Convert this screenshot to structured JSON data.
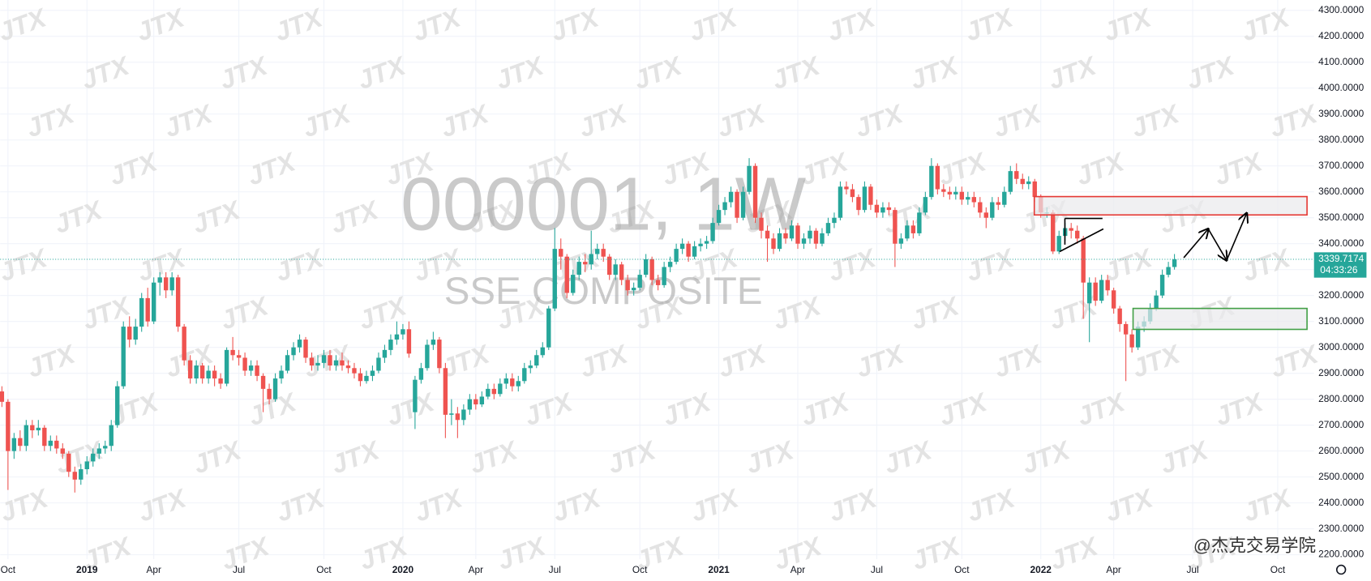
{
  "chart_data": {
    "type": "candlestick",
    "title": "000001, 1W",
    "subtitle": "SSE COMPOSITE",
    "watermark": "JTX",
    "credit": "@杰克交易学院",
    "countdown": "04:33:26",
    "up_color": "#26a69a",
    "down_color": "#ef5350",
    "grid": true,
    "categories": [
      null,
      "Oct",
      null,
      null,
      null,
      null,
      null,
      null,
      null,
      null,
      null,
      null,
      null,
      null,
      "2019",
      null,
      null,
      null,
      null,
      null,
      null,
      null,
      null,
      null,
      null,
      "Apr",
      null,
      null,
      null,
      null,
      null,
      null,
      null,
      null,
      null,
      null,
      null,
      null,
      null,
      "Jul",
      null,
      null,
      null,
      null,
      null,
      null,
      null,
      null,
      null,
      null,
      null,
      null,
      null,
      "Oct",
      null,
      null,
      null,
      null,
      null,
      null,
      null,
      null,
      null,
      null,
      null,
      null,
      "2020",
      null,
      null,
      null,
      null,
      null,
      null,
      null,
      null,
      null,
      null,
      null,
      "Apr",
      null,
      null,
      null,
      null,
      null,
      null,
      null,
      null,
      null,
      null,
      null,
      null,
      "Jul",
      null,
      null,
      null,
      null,
      null,
      null,
      null,
      null,
      null,
      null,
      null,
      null,
      null,
      "Oct",
      null,
      null,
      null,
      null,
      null,
      null,
      null,
      null,
      null,
      null,
      null,
      null,
      "2021",
      null,
      null,
      null,
      null,
      null,
      null,
      null,
      null,
      null,
      null,
      null,
      null,
      "Apr",
      null,
      null,
      null,
      null,
      null,
      null,
      null,
      null,
      null,
      null,
      null,
      null,
      "Jul",
      null,
      null,
      null,
      null,
      null,
      null,
      null,
      null,
      null,
      null,
      null,
      null,
      null,
      "Oct",
      null,
      null,
      null,
      null,
      null,
      null,
      null,
      null,
      null,
      null,
      null,
      null,
      "2022",
      null,
      null,
      null,
      null,
      null,
      null,
      null,
      null,
      null,
      null,
      null,
      "Apr",
      null,
      null,
      null,
      null,
      null,
      null,
      null,
      null,
      null,
      null,
      null,
      null,
      "Jul",
      null,
      null,
      null,
      null,
      null,
      null,
      null,
      null,
      null,
      null,
      null,
      null,
      null,
      "Oct",
      null,
      null,
      null,
      null,
      null
    ],
    "open": [
      2830,
      2790,
      2600,
      2650,
      2620,
      2700,
      2680,
      2690,
      2620,
      2640,
      2610,
      2590,
      2520,
      2490,
      2530,
      2560,
      2590,
      2610,
      2620,
      2700,
      2850,
      3080,
      3030,
      3080,
      3190,
      3100,
      3250,
      3270,
      3220,
      3270,
      3080,
      2950,
      2880,
      2930,
      2880,
      2910,
      2880,
      2860,
      2990,
      2970,
      2960,
      2910,
      2930,
      2890,
      2840,
      2800,
      2880,
      2910,
      2970,
      3000,
      3030,
      2960,
      2930,
      2940,
      2970,
      2930,
      2950,
      2930,
      2920,
      2900,
      2870,
      2890,
      2910,
      2960,
      2990,
      3030,
      3050,
      3070,
      2750,
      2875,
      2920,
      3010,
      3030,
      2920,
      2740,
      2745,
      2720,
      2760,
      2800,
      2780,
      2810,
      2840,
      2820,
      2860,
      2880,
      2850,
      2870,
      2920,
      2930,
      2970,
      3000,
      3150,
      3380,
      3350,
      3210,
      3280,
      3330,
      3320,
      3360,
      3380,
      3350,
      3280,
      3320,
      3260,
      3220,
      3230,
      3280,
      3340,
      3260,
      3240,
      3310,
      3330,
      3380,
      3400,
      3350,
      3390,
      3400,
      3410,
      3480,
      3530,
      3560,
      3600,
      3500,
      3600,
      3700,
      3500,
      3450,
      3420,
      3380,
      3440,
      3420,
      3470,
      3400,
      3420,
      3450,
      3400,
      3440,
      3480,
      3500,
      3620,
      3610,
      3580,
      3530,
      3620,
      3550,
      3520,
      3540,
      3530,
      3400,
      3420,
      3470,
      3440,
      3520,
      3580,
      3700,
      3610,
      3600,
      3590,
      3600,
      3570,
      3580,
      3560,
      3520,
      3500,
      3560,
      3550,
      3600,
      3680,
      3650,
      3630,
      3640,
      3580,
      3520,
      3520,
      3370,
      3430,
      3460,
      3450,
      3420,
      3170,
      3250,
      3180,
      3260,
      3220,
      3150,
      3090,
      3050,
      3000,
      3080,
      3100,
      3150,
      3200,
      3280,
      3310,
      null,
      null,
      null,
      null,
      null,
      null,
      null,
      null,
      null,
      null,
      null,
      null,
      null,
      null,
      null,
      null,
      null,
      null,
      null,
      null,
      null,
      null
    ],
    "high": [
      2850,
      2800,
      2670,
      2680,
      2720,
      2720,
      2720,
      2700,
      2660,
      2660,
      2630,
      2600,
      2540,
      2550,
      2580,
      2610,
      2630,
      2640,
      2720,
      2870,
      3100,
      3120,
      3110,
      3210,
      3230,
      3270,
      3290,
      3290,
      3290,
      3280,
      3090,
      2970,
      2950,
      2940,
      2930,
      2930,
      2900,
      3000,
      3040,
      2990,
      2980,
      2950,
      2950,
      2900,
      2860,
      2900,
      2930,
      2990,
      3020,
      3050,
      3040,
      2980,
      2970,
      2990,
      2990,
      2970,
      2980,
      2950,
      2940,
      2920,
      2910,
      2930,
      2980,
      3010,
      3050,
      3100,
      3090,
      3100,
      2890,
      2940,
      3030,
      3060,
      3040,
      2940,
      2800,
      2770,
      2780,
      2820,
      2820,
      2830,
      2860,
      2860,
      2880,
      2900,
      2900,
      2890,
      2940,
      2950,
      2990,
      3020,
      3160,
      3460,
      3420,
      3360,
      3300,
      3350,
      3360,
      3450,
      3400,
      3400,
      3360,
      3340,
      3330,
      3280,
      3250,
      3300,
      3360,
      3350,
      3280,
      3330,
      3350,
      3400,
      3420,
      3410,
      3410,
      3420,
      3430,
      3500,
      3550,
      3580,
      3620,
      3610,
      3620,
      3730,
      3710,
      3520,
      3470,
      3440,
      3460,
      3460,
      3490,
      3480,
      3440,
      3470,
      3460,
      3460,
      3500,
      3520,
      3640,
      3640,
      3630,
      3590,
      3640,
      3630,
      3570,
      3560,
      3560,
      3540,
      3440,
      3490,
      3490,
      3540,
      3600,
      3730,
      3710,
      3630,
      3620,
      3620,
      3620,
      3600,
      3600,
      3580,
      3540,
      3580,
      3580,
      3620,
      3700,
      3710,
      3670,
      3660,
      3650,
      3590,
      3540,
      3530,
      3450,
      3480,
      3480,
      3470,
      3430,
      3270,
      3270,
      3280,
      3280,
      3230,
      3160,
      3100,
      3070,
      3100,
      3120,
      3170,
      3220,
      3300,
      3330,
      3360,
      null,
      null,
      null,
      null,
      null,
      null,
      null,
      null,
      null,
      null,
      null,
      null,
      null,
      null,
      null,
      null,
      null,
      null,
      null,
      null,
      null,
      null
    ],
    "low": [
      2770,
      2450,
      2570,
      2600,
      2600,
      2650,
      2660,
      2600,
      2600,
      2590,
      2570,
      2500,
      2440,
      2470,
      2510,
      2540,
      2570,
      2590,
      2600,
      2690,
      2840,
      3000,
      3010,
      3060,
      3080,
      3090,
      3200,
      3190,
      3200,
      3060,
      2930,
      2860,
      2860,
      2860,
      2860,
      2850,
      2840,
      2850,
      2950,
      2930,
      2890,
      2890,
      2870,
      2750,
      2780,
      2790,
      2860,
      2900,
      2950,
      2980,
      2940,
      2910,
      2910,
      2920,
      2910,
      2910,
      2910,
      2900,
      2880,
      2850,
      2860,
      2870,
      2900,
      2940,
      2970,
      3010,
      3030,
      2960,
      2685,
      2860,
      2910,
      2990,
      2900,
      2650,
      2700,
      2650,
      2700,
      2740,
      2760,
      2770,
      2800,
      2800,
      2810,
      2840,
      2830,
      2830,
      2860,
      2900,
      2920,
      2960,
      2990,
      3140,
      3300,
      3190,
      3200,
      3260,
      3290,
      3300,
      3340,
      3330,
      3260,
      3260,
      3240,
      3200,
      3200,
      3220,
      3270,
      3240,
      3220,
      3230,
      3290,
      3320,
      3360,
      3330,
      3340,
      3370,
      3380,
      3400,
      3470,
      3510,
      3540,
      3480,
      3490,
      3590,
      3480,
      3420,
      3330,
      3360,
      3370,
      3400,
      3410,
      3380,
      3380,
      3400,
      3380,
      3390,
      3430,
      3460,
      3490,
      3590,
      3560,
      3510,
      3520,
      3530,
      3500,
      3500,
      3510,
      3310,
      3380,
      3410,
      3420,
      3430,
      3510,
      3570,
      3590,
      3580,
      3570,
      3570,
      3550,
      3550,
      3540,
      3500,
      3460,
      3490,
      3530,
      3540,
      3590,
      3630,
      3610,
      3610,
      3560,
      3500,
      3500,
      3360,
      3360,
      3410,
      3420,
      3400,
      3110,
      3020,
      3160,
      3170,
      3200,
      3130,
      3060,
      2870,
      2980,
      2990,
      3060,
      3090,
      3140,
      3190,
      3270,
      3300,
      null,
      null,
      null,
      null,
      null,
      null,
      null,
      null,
      null,
      null,
      null,
      null,
      null,
      null,
      null,
      null,
      null,
      null,
      null,
      null,
      null,
      null
    ],
    "close": [
      2790,
      2600,
      2650,
      2620,
      2700,
      2680,
      2690,
      2620,
      2640,
      2610,
      2590,
      2520,
      2490,
      2530,
      2560,
      2590,
      2610,
      2620,
      2700,
      2850,
      3080,
      3030,
      3080,
      3190,
      3100,
      3250,
      3270,
      3220,
      3270,
      3080,
      2950,
      2880,
      2930,
      2880,
      2910,
      2880,
      2860,
      2990,
      2970,
      2960,
      2910,
      2930,
      2890,
      2840,
      2800,
      2880,
      2910,
      2970,
      3000,
      3030,
      2960,
      2930,
      2940,
      2970,
      2930,
      2950,
      2930,
      2920,
      2900,
      2870,
      2890,
      2910,
      2960,
      2990,
      3030,
      3050,
      3070,
      2976,
      2875,
      2920,
      3010,
      3030,
      2920,
      2740,
      2745,
      2720,
      2760,
      2800,
      2780,
      2810,
      2840,
      2820,
      2860,
      2880,
      2850,
      2870,
      2920,
      2930,
      2970,
      3000,
      3150,
      3380,
      3350,
      3210,
      3280,
      3330,
      3320,
      3360,
      3380,
      3350,
      3280,
      3320,
      3260,
      3220,
      3230,
      3280,
      3340,
      3260,
      3240,
      3310,
      3330,
      3380,
      3400,
      3350,
      3390,
      3400,
      3410,
      3480,
      3530,
      3560,
      3600,
      3500,
      3600,
      3700,
      3500,
      3450,
      3420,
      3380,
      3440,
      3420,
      3470,
      3400,
      3420,
      3450,
      3400,
      3440,
      3480,
      3500,
      3620,
      3610,
      3580,
      3530,
      3620,
      3550,
      3520,
      3540,
      3530,
      3400,
      3420,
      3470,
      3440,
      3520,
      3580,
      3700,
      3610,
      3600,
      3590,
      3600,
      3570,
      3580,
      3560,
      3520,
      3500,
      3560,
      3550,
      3600,
      3680,
      3650,
      3630,
      3640,
      3580,
      3520,
      3520,
      3370,
      3430,
      3460,
      3450,
      3420,
      3250,
      3250,
      3180,
      3260,
      3220,
      3150,
      3090,
      3050,
      3000,
      3080,
      3100,
      3150,
      3200,
      3280,
      3310,
      3339.7174,
      null,
      null,
      null,
      null,
      null,
      null,
      null,
      null,
      null,
      null,
      null,
      null,
      null,
      null,
      null,
      null,
      null,
      null,
      null,
      null,
      null,
      null
    ],
    "ylim": [
      2183,
      4340
    ],
    "yticks": [
      {
        "value": 2200,
        "label": "2200.0000"
      },
      {
        "value": 2300,
        "label": "2300.0000"
      },
      {
        "value": 2400,
        "label": "2400.0000"
      },
      {
        "value": 2500,
        "label": "2500.0000"
      },
      {
        "value": 2600,
        "label": "2600.0000"
      },
      {
        "value": 2700,
        "label": "2700.0000"
      },
      {
        "value": 2800,
        "label": "2800.0000"
      },
      {
        "value": 2900,
        "label": "2900.0000"
      },
      {
        "value": 3000,
        "label": "3000.0000"
      },
      {
        "value": 3100,
        "label": "3100.0000"
      },
      {
        "value": 3200,
        "label": "3200.0000"
      },
      {
        "value": 3300,
        "label": "3300.0000"
      },
      {
        "value": 3400,
        "label": "3400.0000"
      },
      {
        "value": 3500,
        "label": "3500.0000"
      },
      {
        "value": 3600,
        "label": "3600.0000"
      },
      {
        "value": 3700,
        "label": "3700.0000"
      },
      {
        "value": 3800,
        "label": "3800.0000"
      },
      {
        "value": 3900,
        "label": "3900.0000"
      },
      {
        "value": 4000,
        "label": "4000.0000"
      },
      {
        "value": 4100,
        "label": "4100.0000"
      },
      {
        "value": 4200,
        "label": "4200.0000"
      },
      {
        "value": 4300,
        "label": "4300.0000"
      }
    ]
  }
}
